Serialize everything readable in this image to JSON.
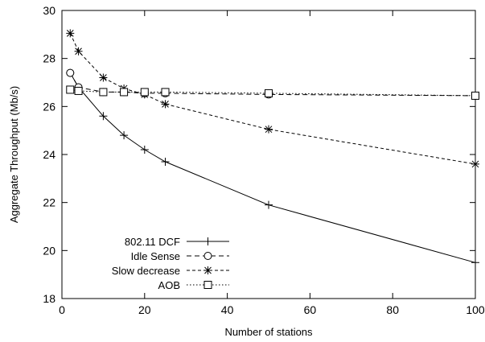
{
  "chart_data": {
    "type": "line",
    "title": "",
    "xlabel": "Number of stations",
    "ylabel": "Aggregate Throughput (Mb/s)",
    "xlim": [
      0,
      100
    ],
    "ylim": [
      18,
      30
    ],
    "xticks": [
      0,
      20,
      40,
      60,
      80,
      100
    ],
    "yticks": [
      18,
      20,
      22,
      24,
      26,
      28,
      30
    ],
    "grid": false,
    "legend": "bottom-left",
    "series": [
      {
        "name": "802.11 DCF",
        "marker": "plus",
        "dash": "solid",
        "x": [
          2,
          4,
          10,
          15,
          20,
          25,
          50,
          100
        ],
        "y": [
          27.4,
          26.8,
          25.6,
          24.8,
          24.2,
          23.7,
          21.9,
          19.5
        ]
      },
      {
        "name": "Idle Sense",
        "marker": "circle",
        "dash": "dashed",
        "x": [
          2,
          4,
          10,
          15,
          20,
          25,
          50,
          100
        ],
        "y": [
          27.4,
          26.8,
          26.6,
          26.6,
          26.55,
          26.55,
          26.5,
          26.45
        ]
      },
      {
        "name": "Slow decrease",
        "marker": "star",
        "dash": "short-dash",
        "x": [
          2,
          4,
          10,
          15,
          20,
          25,
          50,
          100
        ],
        "y": [
          29.05,
          28.3,
          27.2,
          26.75,
          26.5,
          26.1,
          25.05,
          23.6
        ]
      },
      {
        "name": "AOB",
        "marker": "square",
        "dash": "dotted",
        "x": [
          2,
          4,
          10,
          15,
          20,
          25,
          50,
          100
        ],
        "y": [
          26.7,
          26.65,
          26.6,
          26.6,
          26.6,
          26.6,
          26.55,
          26.45
        ]
      }
    ]
  }
}
